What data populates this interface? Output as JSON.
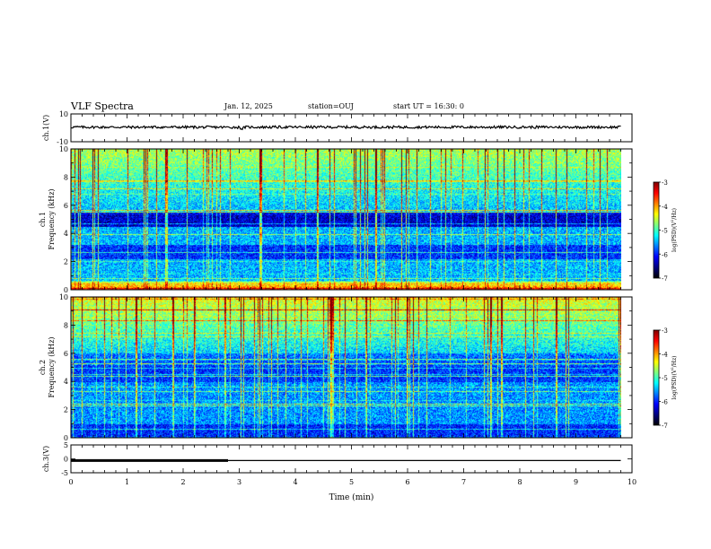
{
  "header": {
    "title": "VLF Spectra",
    "date": "Jan. 12, 2025",
    "station": "station=OUJ",
    "start": "start UT =  16:30: 0"
  },
  "colors": {
    "colormap": [
      "#000000",
      "#00007f",
      "#0000ff",
      "#007fff",
      "#00ffff",
      "#7fff7f",
      "#ffff00",
      "#ff7f00",
      "#ff0000",
      "#7f0000"
    ],
    "trace": "#000000",
    "frame": "#000000"
  },
  "chart_data": [
    {
      "type": "line",
      "name": "ch1-waveform",
      "ylabel": "ch.1(V)",
      "ylim": [
        -10,
        10
      ],
      "yticks": [
        "10",
        "-10"
      ],
      "x": [
        0,
        1,
        2,
        3,
        3.05,
        3.1,
        4,
        5,
        6,
        7,
        8,
        9,
        9.8
      ],
      "y": [
        0.5,
        0.5,
        0.5,
        0.4,
        -0.8,
        0.5,
        0.5,
        0.5,
        0.5,
        0.5,
        0.5,
        0.5,
        0.5
      ]
    },
    {
      "type": "heatmap",
      "name": "ch1-spectrogram",
      "ylabel": "ch.1\nFrequency (kHz)",
      "ylabel_lines": [
        "ch.1",
        "Frequency (kHz)"
      ],
      "ylim": [
        0,
        10
      ],
      "yticks": [
        "0",
        "2",
        "4",
        "6",
        "8",
        "10"
      ],
      "xlim": [
        0,
        10
      ],
      "data_xlim": [
        0,
        9.8
      ],
      "colorbar": {
        "label": "log(PSD)(V²/Hz)",
        "label_parts": [
          "log(PSD)(V",
          "2",
          "/Hz)"
        ],
        "range": [
          -7,
          -3
        ],
        "ticks": [
          "-3",
          "-4",
          "-5",
          "-6",
          "-7"
        ]
      }
    },
    {
      "type": "heatmap",
      "name": "ch2-spectrogram",
      "ylabel": "ch.2\nFrequency (kHz)",
      "ylabel_lines": [
        "ch.2",
        "Frequency (kHz)"
      ],
      "ylim": [
        0,
        10
      ],
      "yticks": [
        "0",
        "2",
        "4",
        "6",
        "8",
        "10"
      ],
      "xlim": [
        0,
        10
      ],
      "data_xlim": [
        0,
        9.8
      ],
      "colorbar": {
        "label": "log(PSD)(V²/Hz)",
        "label_parts": [
          "log(PSD)(V",
          "2",
          "/Hz)"
        ],
        "range": [
          -7,
          -3
        ],
        "ticks": [
          "-3",
          "-4",
          "-5",
          "-6",
          "-7"
        ]
      }
    },
    {
      "type": "line",
      "name": "ch3-signal",
      "ylabel": "ch.3(V)",
      "ylim": [
        -5,
        5
      ],
      "yticks": [
        "5",
        "0",
        "-5"
      ],
      "xlabel": "Time (min)",
      "xlim": [
        0,
        10
      ],
      "xticks": [
        "0",
        "1",
        "2",
        "3",
        "4",
        "5",
        "6",
        "7",
        "8",
        "9",
        "10"
      ],
      "series": [
        {
          "x": [
            0,
            2.8
          ],
          "y": [
            -0.6,
            -0.6
          ]
        },
        {
          "x": [
            0,
            9.8
          ],
          "y": [
            -0.6,
            -0.6
          ]
        }
      ]
    }
  ]
}
